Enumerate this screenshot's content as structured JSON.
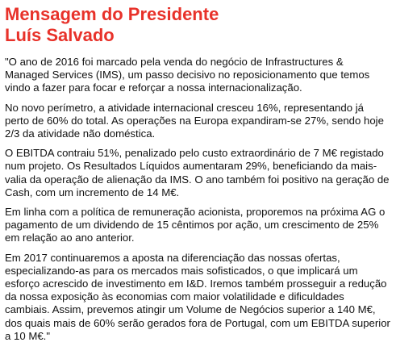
{
  "title": {
    "line1": "Mensagem do Presidente",
    "line2": "Luís Salvado"
  },
  "paragraphs": [
    "\"O ano de 2016 foi marcado pela venda do negócio de Infrastructures & Managed Services (IMS), um passo decisivo no reposicionamento que temos vindo a fazer para focar e reforçar a nossa internacionalização.",
    "No novo perímetro, a atividade internacional cresceu 16%, representando já perto de 60% do total. As operações na Europa expandiram-se 27%, sendo hoje 2/3 da atividade não doméstica.",
    "O EBITDA contraiu 51%, penalizado pelo custo extraordinário de 7 M€ registado num projeto. Os Resultados Líquidos aumentaram 29%, beneficiando da mais-valia da operação de alienação da IMS. O ano também foi positivo na geração de Cash, com um incremento de 14 M€.",
    "Em linha com a política de remuneração acionista, proporemos na próxima AG o pagamento de um dividendo de 15 cêntimos por ação, um crescimento de 25% em relação ao ano anterior.",
    "Em 2017 continuaremos a aposta na diferenciação das nossas ofertas, especializando-as para os mercados mais sofisticados, o que implicará um esforço acrescido de investimento em I&D. Iremos também prosseguir a redução da nossa exposição às economias com maior volatilidade e dificuldades cambiais. Assim, prevemos atingir um Volume de Negócios superior a 140 M€, dos quais mais de 60% serão gerados fora de Portugal, com um EBITDA superior a 10 M€.\""
  ],
  "colors": {
    "title": "#e8322a",
    "text": "#111111",
    "background": "#ffffff"
  }
}
